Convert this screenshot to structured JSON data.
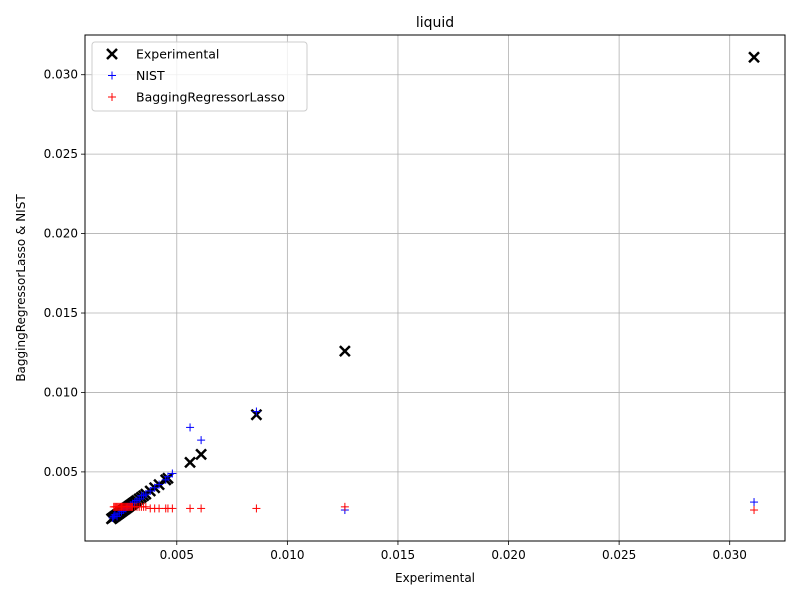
{
  "chart_data": {
    "type": "scatter",
    "title": "liquid",
    "xlabel": "Experimental",
    "ylabel": "BaggingRegressorLasso & NIST",
    "xlim": [
      0.00085,
      0.0325
    ],
    "ylim": [
      0.00065,
      0.0325
    ],
    "xticks": [
      {
        "value": 0.005,
        "label": "0.005"
      },
      {
        "value": 0.01,
        "label": "0.010"
      },
      {
        "value": 0.015,
        "label": "0.015"
      },
      {
        "value": 0.02,
        "label": "0.020"
      },
      {
        "value": 0.025,
        "label": "0.025"
      },
      {
        "value": 0.03,
        "label": "0.030"
      }
    ],
    "yticks": [
      {
        "value": 0.005,
        "label": "0.005"
      },
      {
        "value": 0.01,
        "label": "0.010"
      },
      {
        "value": 0.015,
        "label": "0.015"
      },
      {
        "value": 0.02,
        "label": "0.020"
      },
      {
        "value": 0.025,
        "label": "0.025"
      },
      {
        "value": 0.03,
        "label": "0.030"
      }
    ],
    "grid": true,
    "legend_position": "top-left",
    "series": [
      {
        "name": "Experimental",
        "marker": "x",
        "color": "#000000",
        "points": [
          [
            0.00205,
            0.00205
          ],
          [
            0.0021,
            0.0021
          ],
          [
            0.00215,
            0.00215
          ],
          [
            0.0022,
            0.0022
          ],
          [
            0.00225,
            0.00225
          ],
          [
            0.0023,
            0.0023
          ],
          [
            0.00235,
            0.00235
          ],
          [
            0.0024,
            0.0024
          ],
          [
            0.00245,
            0.00245
          ],
          [
            0.0025,
            0.0025
          ],
          [
            0.00255,
            0.00255
          ],
          [
            0.0026,
            0.0026
          ],
          [
            0.00265,
            0.00265
          ],
          [
            0.0027,
            0.0027
          ],
          [
            0.00275,
            0.00275
          ],
          [
            0.0028,
            0.0028
          ],
          [
            0.00285,
            0.00285
          ],
          [
            0.0029,
            0.0029
          ],
          [
            0.00295,
            0.00295
          ],
          [
            0.003,
            0.003
          ],
          [
            0.00305,
            0.00305
          ],
          [
            0.0031,
            0.0031
          ],
          [
            0.00315,
            0.00315
          ],
          [
            0.0032,
            0.0032
          ],
          [
            0.0033,
            0.0033
          ],
          [
            0.0034,
            0.0034
          ],
          [
            0.0035,
            0.0035
          ],
          [
            0.0036,
            0.0036
          ],
          [
            0.0038,
            0.0038
          ],
          [
            0.004,
            0.004
          ],
          [
            0.0042,
            0.0042
          ],
          [
            0.0045,
            0.0045
          ],
          [
            0.0046,
            0.0046
          ],
          [
            0.0056,
            0.0056
          ],
          [
            0.0061,
            0.0061
          ],
          [
            0.0086,
            0.0086
          ],
          [
            0.0126,
            0.0126
          ],
          [
            0.0311,
            0.0311
          ]
        ]
      },
      {
        "name": "NIST",
        "marker": "+",
        "color": "#0000ff",
        "points": [
          [
            0.0021,
            0.0021
          ],
          [
            0.00215,
            0.0022
          ],
          [
            0.0022,
            0.0023
          ],
          [
            0.0023,
            0.0022
          ],
          [
            0.0024,
            0.0024
          ],
          [
            0.0025,
            0.0025
          ],
          [
            0.0026,
            0.0026
          ],
          [
            0.0027,
            0.0027
          ],
          [
            0.0028,
            0.0028
          ],
          [
            0.0029,
            0.0029
          ],
          [
            0.003,
            0.003
          ],
          [
            0.0031,
            0.0031
          ],
          [
            0.0032,
            0.0032
          ],
          [
            0.0033,
            0.0033
          ],
          [
            0.0034,
            0.0035
          ],
          [
            0.0035,
            0.0035
          ],
          [
            0.0036,
            0.0036
          ],
          [
            0.0038,
            0.0038
          ],
          [
            0.004,
            0.004
          ],
          [
            0.0042,
            0.0042
          ],
          [
            0.0045,
            0.0045
          ],
          [
            0.0046,
            0.0047
          ],
          [
            0.0048,
            0.0049
          ],
          [
            0.0056,
            0.0078
          ],
          [
            0.0061,
            0.007
          ],
          [
            0.0086,
            0.0088
          ],
          [
            0.0126,
            0.0026
          ],
          [
            0.0311,
            0.0031
          ]
        ]
      },
      {
        "name": "BaggingRegressorLasso",
        "marker": "+",
        "color": "#ff0000",
        "points": [
          [
            0.00215,
            0.0028
          ],
          [
            0.0022,
            0.0028
          ],
          [
            0.00225,
            0.0028
          ],
          [
            0.0023,
            0.0028
          ],
          [
            0.00235,
            0.0028
          ],
          [
            0.0024,
            0.0028
          ],
          [
            0.00245,
            0.0028
          ],
          [
            0.0025,
            0.0028
          ],
          [
            0.00255,
            0.0028
          ],
          [
            0.0026,
            0.0028
          ],
          [
            0.00265,
            0.0028
          ],
          [
            0.0027,
            0.0028
          ],
          [
            0.00275,
            0.0028
          ],
          [
            0.0028,
            0.0028
          ],
          [
            0.00285,
            0.0028
          ],
          [
            0.0029,
            0.0028
          ],
          [
            0.00295,
            0.0028
          ],
          [
            0.003,
            0.0028
          ],
          [
            0.0031,
            0.0028
          ],
          [
            0.0032,
            0.0028
          ],
          [
            0.0033,
            0.0028
          ],
          [
            0.0034,
            0.0028
          ],
          [
            0.0035,
            0.0028
          ],
          [
            0.0036,
            0.0028
          ],
          [
            0.0038,
            0.0027
          ],
          [
            0.004,
            0.0027
          ],
          [
            0.0042,
            0.0027
          ],
          [
            0.0045,
            0.0027
          ],
          [
            0.0046,
            0.0027
          ],
          [
            0.0048,
            0.0027
          ],
          [
            0.0056,
            0.0027
          ],
          [
            0.0061,
            0.0027
          ],
          [
            0.0086,
            0.0027
          ],
          [
            0.0126,
            0.0028
          ],
          [
            0.0311,
            0.0026
          ]
        ]
      }
    ]
  }
}
